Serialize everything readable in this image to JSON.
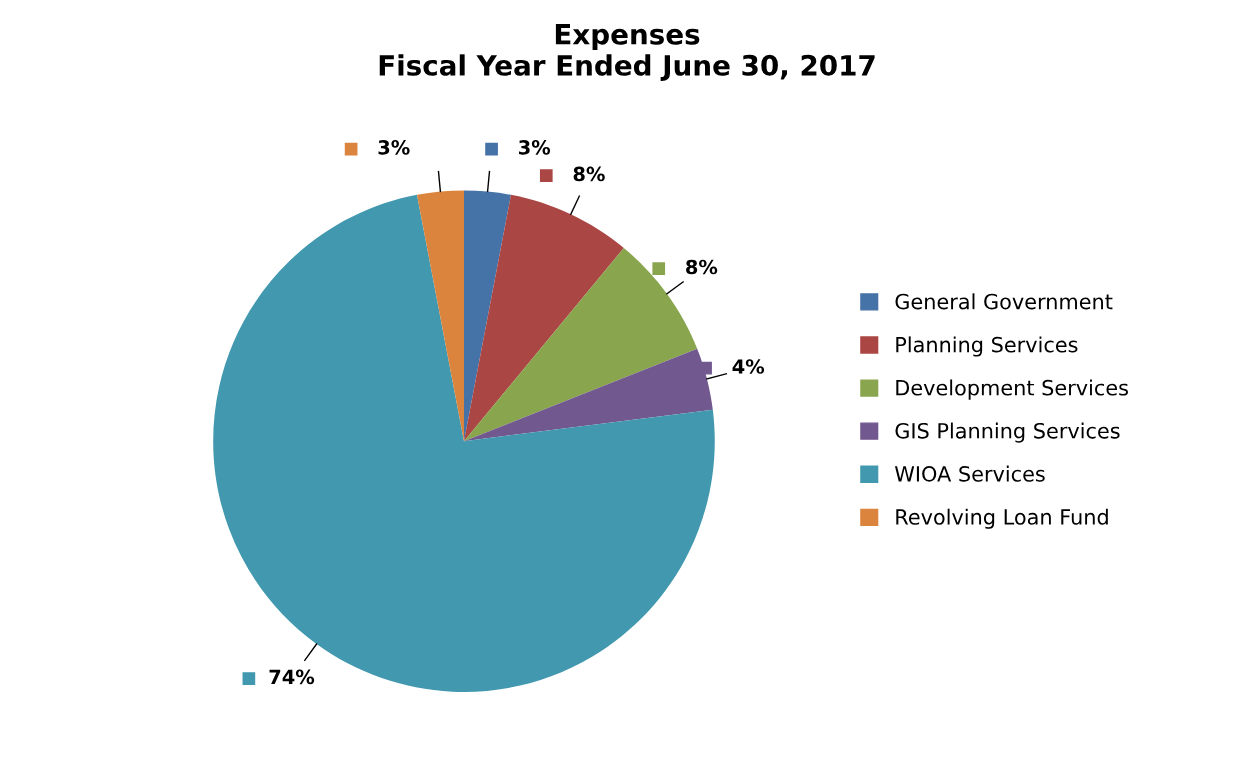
{
  "chart_data": {
    "type": "pie",
    "title": "Expenses\nFiscal Year Ended June 30, 2017",
    "categories": [
      "General Government",
      "Planning Services",
      "Development Services",
      "GIS Planning Services",
      "WIOA Services",
      "Revolving Loan Fund"
    ],
    "values": [
      3,
      8,
      8,
      4,
      74,
      3
    ],
    "colors": [
      "#4572a7",
      "#aa4643",
      "#89a54e",
      "#71588f",
      "#4198af",
      "#db843d"
    ],
    "value_labels": [
      "3%",
      "8%",
      "8%",
      "4%",
      "74%",
      "3%"
    ],
    "legend": "right"
  }
}
